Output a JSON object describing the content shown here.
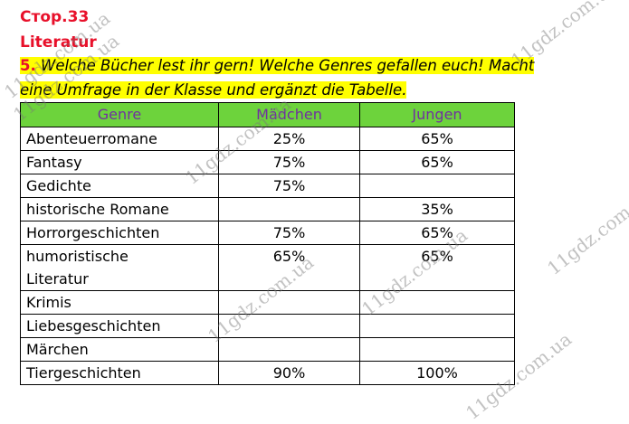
{
  "header": {
    "page": "Стор.33",
    "topic": "Literatur"
  },
  "task": {
    "number": "5.",
    "lines": [
      "Welche Bücher lest ihr gern! Welche Genres gefallen euch! Macht",
      "eine Umfrage in der Klasse und ergänzt die Tabelle."
    ]
  },
  "table": {
    "columns": [
      "Genre",
      "Mädchen",
      "Jungen"
    ],
    "rows": [
      [
        "Abenteuerromane",
        "25%",
        "65%"
      ],
      [
        "Fantasy",
        "75%",
        "65%"
      ],
      [
        "Gedichte",
        "75%",
        null
      ],
      [
        "historische Romane",
        null,
        "35%"
      ],
      [
        "Horrorgeschichten",
        "75%",
        "65%"
      ],
      [
        "humoristische Literatur",
        "65%",
        "65%"
      ],
      [
        "Krimis",
        null,
        null
      ],
      [
        "Liebesgeschichten",
        null,
        null
      ],
      [
        "Märchen",
        null,
        null
      ],
      [
        "Tiergeschichten",
        "90%",
        "100%"
      ]
    ]
  },
  "watermark": "11gdz.com.ua"
}
